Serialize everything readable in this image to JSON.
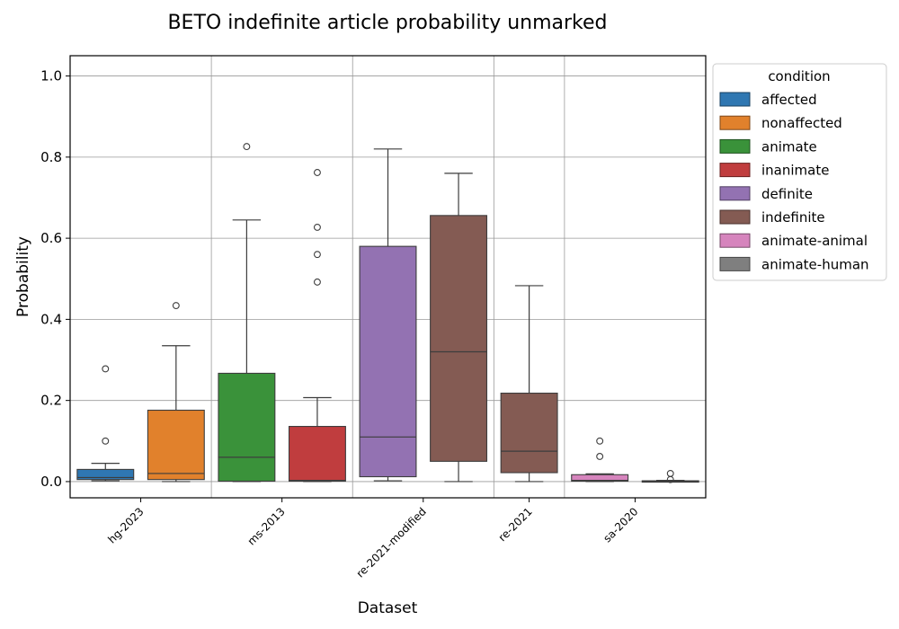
{
  "chart_data": {
    "type": "box",
    "title": "BETO indefinite article probability unmarked",
    "xlabel": "Dataset",
    "ylabel": "Probability",
    "ylim": [
      -0.04,
      1.05
    ],
    "yticks": [
      "0.0",
      "0.2",
      "0.4",
      "0.6",
      "0.8",
      "1.0"
    ],
    "ytick_values": [
      0,
      0.2,
      0.4,
      0.6,
      0.8,
      1.0
    ],
    "grid": true,
    "categories": [
      "hg-2023",
      "ms-2013",
      "re-2021-modified",
      "re-2021",
      "sa-2020"
    ],
    "legend": {
      "title": "condition",
      "placement": "outside-right",
      "entries": [
        {
          "name": "affected",
          "color": "#2f77b2"
        },
        {
          "name": "nonaffected",
          "color": "#e1812c"
        },
        {
          "name": "animate",
          "color": "#3a923a"
        },
        {
          "name": "inanimate",
          "color": "#c03d3e"
        },
        {
          "name": "definite",
          "color": "#9372b2"
        },
        {
          "name": "indefinite",
          "color": "#845b53"
        },
        {
          "name": "animate-animal",
          "color": "#d684bd"
        },
        {
          "name": "animate-human",
          "color": "#7f7f7f"
        }
      ]
    },
    "boxes": [
      {
        "category": "hg-2023",
        "condition": "affected",
        "color": "#2f77b2",
        "min": 0.002,
        "q1": 0.005,
        "median": 0.01,
        "q3": 0.03,
        "max": 0.045,
        "outliers": [
          0.1,
          0.278
        ]
      },
      {
        "category": "hg-2023",
        "condition": "nonaffected",
        "color": "#e1812c",
        "min": 0.0,
        "q1": 0.005,
        "median": 0.02,
        "q3": 0.176,
        "max": 0.335,
        "outliers": [
          0.434
        ]
      },
      {
        "category": "ms-2013",
        "condition": "animate",
        "color": "#3a923a",
        "min": 0.0,
        "q1": 0.001,
        "median": 0.06,
        "q3": 0.267,
        "max": 0.645,
        "outliers": [
          0.826
        ]
      },
      {
        "category": "ms-2013",
        "condition": "inanimate",
        "color": "#c03d3e",
        "min": 0.0,
        "q1": 0.001,
        "median": 0.003,
        "q3": 0.136,
        "max": 0.207,
        "outliers": [
          0.492,
          0.56,
          0.627,
          0.762
        ]
      },
      {
        "category": "re-2021-modified",
        "condition": "definite",
        "color": "#9372b2",
        "min": 0.002,
        "q1": 0.012,
        "median": 0.11,
        "q3": 0.58,
        "max": 0.82,
        "outliers": []
      },
      {
        "category": "re-2021-modified",
        "condition": "indefinite",
        "color": "#845b53",
        "min": 0.0,
        "q1": 0.05,
        "median": 0.32,
        "q3": 0.656,
        "max": 0.76,
        "outliers": []
      },
      {
        "category": "re-2021",
        "condition": "indefinite",
        "color": "#845b53",
        "min": 0.0,
        "q1": 0.022,
        "median": 0.075,
        "q3": 0.218,
        "max": 0.483,
        "outliers": []
      },
      {
        "category": "sa-2020",
        "condition": "animate-animal",
        "color": "#d684bd",
        "min": 0.0,
        "q1": 0.001,
        "median": 0.003,
        "q3": 0.017,
        "max": 0.019,
        "outliers": [
          0.062,
          0.1
        ]
      },
      {
        "category": "sa-2020",
        "condition": "animate-human",
        "color": "#7f7f7f",
        "min": 0.0,
        "q1": 0.0,
        "median": 0.001,
        "q3": 0.002,
        "max": 0.003,
        "outliers": [
          0.005,
          0.02
        ]
      }
    ]
  }
}
